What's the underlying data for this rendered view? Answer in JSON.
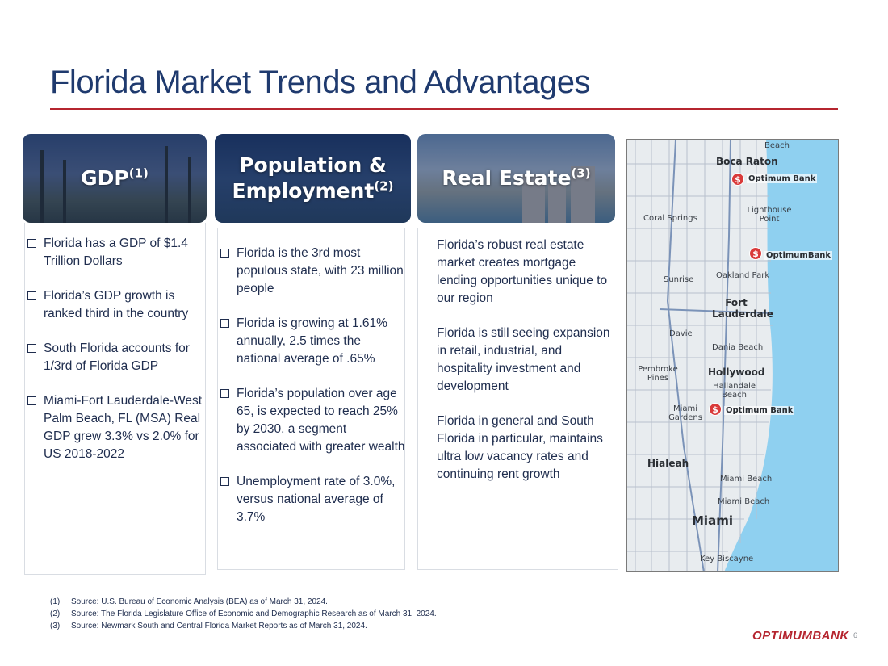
{
  "title": "Florida Market Trends and Advantages",
  "columns": [
    {
      "header": "GDP",
      "header_sup": "(1)",
      "bullets": [
        "Florida has a GDP of $1.4 Trillion Dollars",
        "Florida’s GDP growth is ranked third in the country",
        "South Florida accounts for 1/3rd of Florida GDP",
        "Miami-Fort Lauderdale-West Palm Beach, FL (MSA) Real GDP grew 3.3% vs 2.0% for US 2018-2022"
      ]
    },
    {
      "header_line1": "Population &",
      "header_line2": "Employment",
      "header_sup": "(2)",
      "bullets": [
        "Florida is the 3rd most populous state, with 23 million people",
        "Florida is growing at 1.61% annually, 2.5 times the national average of .65%",
        "Florida’s population over age 65, is expected to reach 25% by 2030, a segment associated with greater wealth",
        "Unemployment rate of 3.0%, versus national average of 3.7%"
      ]
    },
    {
      "header": "Real Estate",
      "header_sup": "(3)",
      "bullets": [
        "Florida’s robust real estate market creates mortgage lending opportunities unique to our region",
        "Florida is still seeing expansion in retail, industrial, and hospitality investment and development",
        "Florida in general and South Florida in particular, maintains ultra low vacancy rates and continuing rent growth"
      ]
    }
  ],
  "map": {
    "labels": {
      "beach": "Beach",
      "boca_raton": "Boca Raton",
      "coral_springs": "Coral Springs",
      "lighthouse_point": "Lighthouse Point",
      "sunrise": "Sunrise",
      "oakland_park": "Oakland Park",
      "fort_lauderdale": "Fort Lauderdale",
      "davie": "Davie",
      "dania_beach": "Dania Beach",
      "pembroke_pines": "Pembroke Pines",
      "hollywood": "Hollywood",
      "hallandale_beach": "Hallandale Beach",
      "miami_gardens": "Miami Gardens",
      "hialeah": "Hialeah",
      "miami_beach_1": "Miami Beach",
      "miami_beach_2": "Miami Beach",
      "miami": "Miami",
      "key_biscayne": "Key Biscayne"
    },
    "pins": [
      {
        "label": "Optimum Bank"
      },
      {
        "label": "OptimumBank"
      },
      {
        "label": "Optimum Bank"
      }
    ],
    "pin_symbol": "$",
    "pin_color": "#d93a3a"
  },
  "footnotes": [
    {
      "num": "(1)",
      "text": "Source: U.S. Bureau of Economic Analysis (BEA) as of March 31, 2024."
    },
    {
      "num": "(2)",
      "text": "Source: The Florida Legislature Office of Economic and Demographic Research  as of March 31, 2024."
    },
    {
      "num": "(3)",
      "text": "Source: Newmark South and Central Florida Market Reports as of March 31, 2024."
    }
  ],
  "logo_text": "OPTIMUMBANK",
  "page_number": "6",
  "colors": {
    "title": "#1f3a6e",
    "accent_rule": "#b5252f",
    "body_text": "#1f2d4e"
  }
}
